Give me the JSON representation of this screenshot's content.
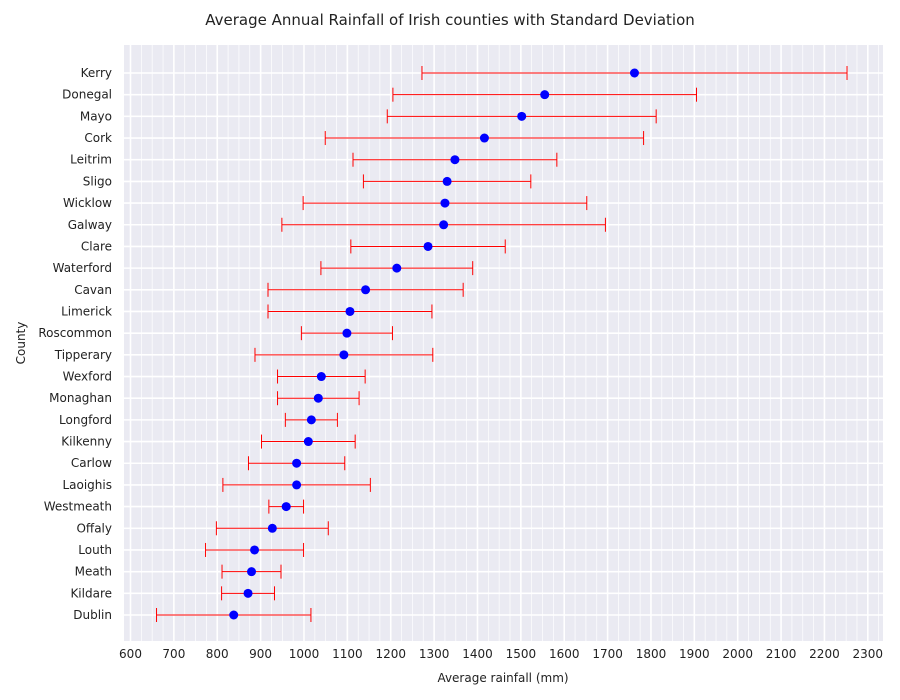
{
  "chart_data": {
    "type": "errorbar",
    "title": "Average Annual Rainfall of Irish counties with Standard Deviation",
    "xlabel": "Average rainfall (mm)",
    "ylabel": "County",
    "xlim": [
      585,
      2335
    ],
    "xticks": [
      600,
      700,
      800,
      900,
      1000,
      1100,
      1200,
      1300,
      1400,
      1500,
      1600,
      1700,
      1800,
      1900,
      2000,
      2100,
      2200,
      2300
    ],
    "grid": true,
    "point_color": "#0000ff",
    "error_color": "#ff0000",
    "background_color": "#eaeaf2",
    "categories": [
      "Kerry",
      "Donegal",
      "Mayo",
      "Cork",
      "Leitrim",
      "Sligo",
      "Wicklow",
      "Galway",
      "Clare",
      "Waterford",
      "Cavan",
      "Limerick",
      "Roscommon",
      "Tipperary",
      "Wexford",
      "Monaghan",
      "Longford",
      "Kilkenny",
      "Carlow",
      "Laoighis",
      "Westmeath",
      "Offaly",
      "Louth",
      "Meath",
      "Kildare",
      "Dublin"
    ],
    "means": [
      1762,
      1555,
      1502,
      1416,
      1348,
      1330,
      1325,
      1322,
      1286,
      1214,
      1142,
      1106,
      1099,
      1092,
      1040,
      1033,
      1017,
      1010,
      983,
      983,
      959,
      927,
      886,
      879,
      871,
      838
    ],
    "std": [
      490,
      350,
      310,
      367,
      235,
      193,
      327,
      373,
      178,
      175,
      225,
      189,
      105,
      205,
      101,
      94,
      60,
      108,
      111,
      170,
      40,
      129,
      113,
      68,
      61,
      178
    ]
  }
}
